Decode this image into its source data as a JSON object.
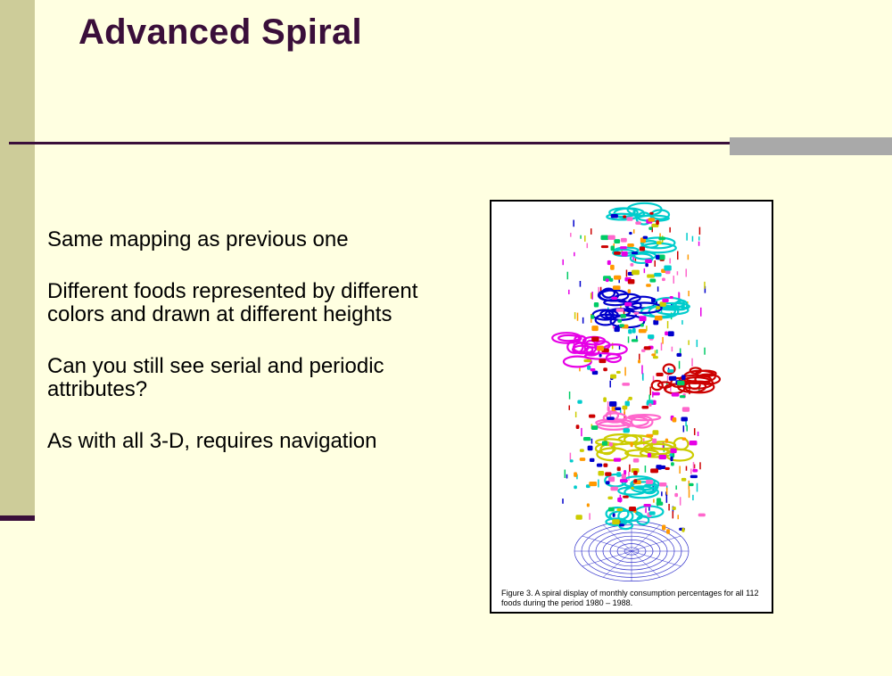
{
  "slide": {
    "title": "Advanced Spiral",
    "bullets": [
      "Same mapping as previous one",
      "Different foods represented by different colors and drawn at different heights",
      "Can you still see serial and periodic attributes?",
      "As with all 3-D, requires navigation"
    ]
  },
  "figure": {
    "caption": "Figure 3.  A spiral display of monthly consumption percentages for all 112 foods during the period 1980 – 1988.",
    "palette": [
      "#E600E6",
      "#0000CC",
      "#00CCCC",
      "#CCCC00",
      "#CC0000",
      "#FF66CC",
      "#00CC66",
      "#FF9900"
    ]
  },
  "colors": {
    "background": "#FFFFE1",
    "accent": "#3A0F3A",
    "side_bar": "#CDCC99",
    "rule_block": "#A9A9A9"
  }
}
